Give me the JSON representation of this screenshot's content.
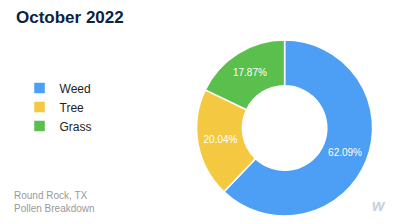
{
  "chart_data": {
    "type": "pie",
    "title": "October 2022",
    "subtitle": [
      "Round Rock, TX",
      "Pollen Breakdown"
    ],
    "annotations": [
      "w"
    ],
    "categories": [
      "Weed",
      "Tree",
      "Grass"
    ],
    "values": [
      62.09,
      20.04,
      17.87
    ],
    "value_labels": [
      "62.09%",
      "20.04%",
      "17.87%"
    ],
    "colors": [
      "#4D9EF5",
      "#F5C842",
      "#5BBF4E"
    ],
    "data_labels": true,
    "legend": "left"
  }
}
